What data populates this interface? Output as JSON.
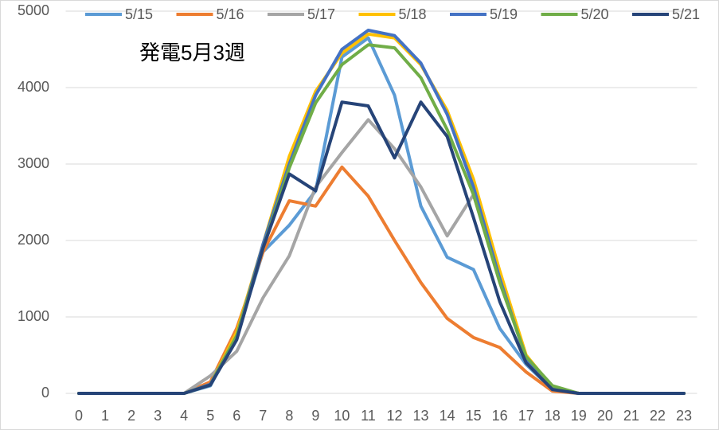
{
  "chart_data": {
    "type": "line",
    "annotation": "発電5月3週",
    "categories": [
      "0",
      "1",
      "2",
      "3",
      "4",
      "5",
      "6",
      "7",
      "8",
      "9",
      "10",
      "11",
      "12",
      "13",
      "14",
      "15",
      "16",
      "17",
      "18",
      "19",
      "20",
      "21",
      "22",
      "23"
    ],
    "series": [
      {
        "name": "5/15",
        "color": "#5b9bd5",
        "values": [
          0,
          0,
          0,
          0,
          0,
          100,
          750,
          1850,
          2200,
          2650,
          4400,
          4650,
          3900,
          2450,
          1780,
          1620,
          850,
          380,
          50,
          0,
          0,
          0,
          0,
          0
        ]
      },
      {
        "name": "5/16",
        "color": "#ed7d31",
        "values": [
          0,
          0,
          0,
          0,
          0,
          150,
          850,
          1850,
          2520,
          2450,
          2960,
          2580,
          2000,
          1450,
          980,
          730,
          600,
          280,
          30,
          0,
          0,
          0,
          0,
          0
        ]
      },
      {
        "name": "5/17",
        "color": "#a5a5a5",
        "values": [
          0,
          0,
          0,
          0,
          0,
          230,
          550,
          1250,
          1800,
          2700,
          3150,
          3580,
          3200,
          2700,
          2060,
          2600,
          1500,
          450,
          50,
          0,
          0,
          0,
          0,
          0
        ]
      },
      {
        "name": "5/18",
        "color": "#ffc000",
        "values": [
          0,
          0,
          0,
          0,
          0,
          120,
          800,
          1950,
          3100,
          3950,
          4450,
          4700,
          4650,
          4300,
          3700,
          2800,
          1600,
          500,
          80,
          0,
          0,
          0,
          0,
          0
        ]
      },
      {
        "name": "5/19",
        "color": "#4472c4",
        "values": [
          0,
          0,
          0,
          0,
          0,
          120,
          750,
          1950,
          3000,
          3900,
          4500,
          4750,
          4680,
          4320,
          3650,
          2700,
          1500,
          450,
          60,
          0,
          0,
          0,
          0,
          0
        ]
      },
      {
        "name": "5/20",
        "color": "#70ad47",
        "values": [
          0,
          0,
          0,
          0,
          0,
          110,
          750,
          1900,
          2950,
          3800,
          4300,
          4560,
          4520,
          4130,
          3450,
          2600,
          1450,
          480,
          100,
          0,
          0,
          0,
          0,
          0
        ]
      },
      {
        "name": "5/21",
        "color": "#264478",
        "values": [
          0,
          0,
          0,
          0,
          0,
          110,
          700,
          1900,
          2870,
          2650,
          3810,
          3760,
          3080,
          3810,
          3360,
          2300,
          1200,
          400,
          50,
          0,
          0,
          0,
          0,
          0
        ]
      }
    ],
    "ylim": [
      0,
      5000
    ],
    "yticks": [
      0,
      1000,
      2000,
      3000,
      4000,
      5000
    ],
    "grid": true
  }
}
